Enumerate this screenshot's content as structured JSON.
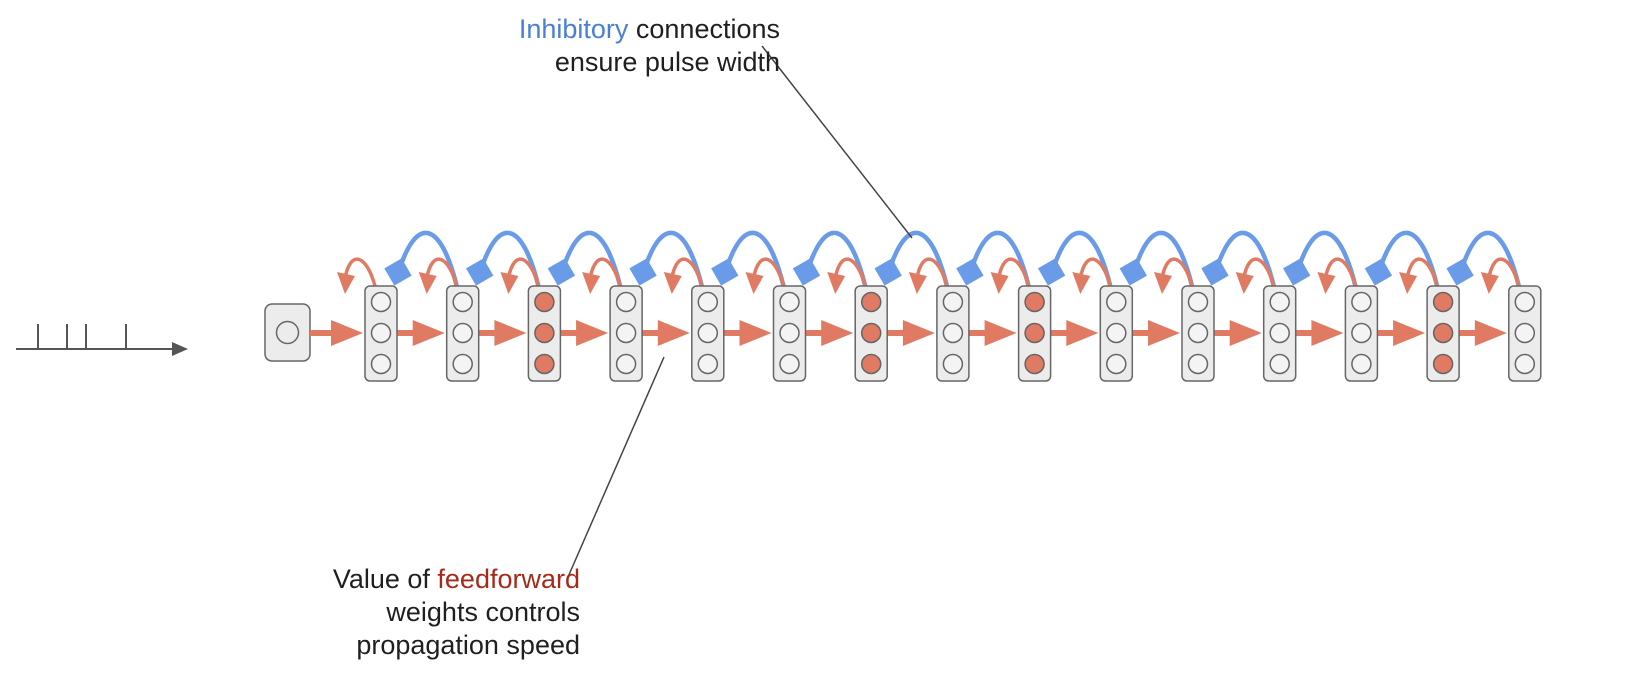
{
  "annotations": {
    "inhibitory": {
      "highlight": "Inhibitory",
      "line1_rest": " connections",
      "line2": "ensure pulse width"
    },
    "feedforward": {
      "line1_prefix": "Value of ",
      "highlight": "feedforward",
      "line2": "weights controls",
      "line3": "propagation speed"
    }
  },
  "network": {
    "input_units": 1,
    "columns": 15,
    "units_per_column": 3,
    "active_columns": [
      3,
      7,
      9,
      14
    ]
  },
  "input_spikes": 4,
  "colors": {
    "inhibitory": "#6a9be8",
    "excitatory": "#e07a62",
    "active_unit": "#e07a62",
    "inactive_unit": "#ececec",
    "column_fill": "#ececec",
    "column_stroke": "#666666",
    "axis": "#555555",
    "leader_line": "#444444",
    "highlight_blue": "#4a7fd8",
    "highlight_red": "#a52a1a"
  }
}
